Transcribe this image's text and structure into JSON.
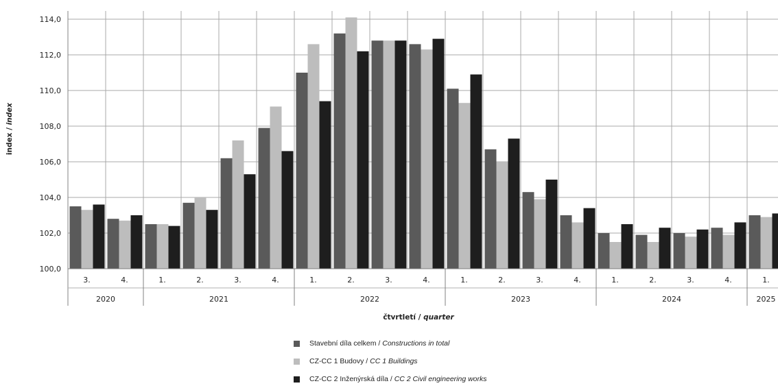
{
  "chart_data": {
    "type": "bar",
    "title": "",
    "ylabel": "index / index",
    "ylabel_parts": [
      "index / ",
      "index"
    ],
    "xlabel": "čtvrtletí / quarter",
    "xlabel_parts": [
      "čtvrtletí / ",
      "quarter"
    ],
    "ylim": [
      100,
      114
    ],
    "yticks": [
      "100,0",
      "102,0",
      "104,0",
      "106,0",
      "108,0",
      "110,0",
      "112,0",
      "114,0"
    ],
    "categories": [
      "3.",
      "4.",
      "1.",
      "2.",
      "3.",
      "4.",
      "1.",
      "2.",
      "3.",
      "4.",
      "1.",
      "2.",
      "3.",
      "4.",
      "1.",
      "2.",
      "3.",
      "4.",
      "1."
    ],
    "years": [
      {
        "label": "2020",
        "count": 2
      },
      {
        "label": "2021",
        "count": 4
      },
      {
        "label": "2022",
        "count": 4
      },
      {
        "label": "2023",
        "count": 4
      },
      {
        "label": "2024",
        "count": 4
      },
      {
        "label": "2025",
        "count": 1
      }
    ],
    "grid": true,
    "legend_position": "bottom",
    "series": [
      {
        "name": "Stavební díla celkem / Constructions in total",
        "color": "#5a5a5a",
        "values": [
          103.5,
          102.8,
          102.5,
          103.7,
          106.2,
          107.9,
          111.0,
          113.2,
          112.8,
          112.6,
          110.1,
          106.7,
          104.3,
          103.0,
          102.0,
          101.9,
          102.0,
          102.3,
          103.0
        ]
      },
      {
        "name": "CZ-CC 1 Budovy / CC 1 Buildings",
        "color": "#bdbdbd",
        "values": [
          103.3,
          102.7,
          102.5,
          104.0,
          107.2,
          109.1,
          112.6,
          114.1,
          112.8,
          112.3,
          109.3,
          106.0,
          103.9,
          102.6,
          101.5,
          101.5,
          101.8,
          101.9,
          102.9
        ]
      },
      {
        "name": "CZ-CC 2 Inženýrská díla / CC 2 Civil engineering works",
        "color": "#1e1e1e",
        "values": [
          103.6,
          103.0,
          102.4,
          103.3,
          105.3,
          106.6,
          109.4,
          112.2,
          112.8,
          112.9,
          110.9,
          107.3,
          105.0,
          103.4,
          102.5,
          102.3,
          102.2,
          102.6,
          103.1
        ]
      }
    ]
  },
  "legend": [
    {
      "plain": "Stavební díla celkem / ",
      "italic": "Constructions in total",
      "color": "#5a5a5a"
    },
    {
      "plain": "CZ-CC 1 Budovy / ",
      "italic": "CC 1 Buildings",
      "color": "#bdbdbd"
    },
    {
      "plain": "CZ-CC 2 Inženýrská díla / ",
      "italic": "CC 2 Civil engineering works",
      "color": "#1e1e1e"
    }
  ]
}
